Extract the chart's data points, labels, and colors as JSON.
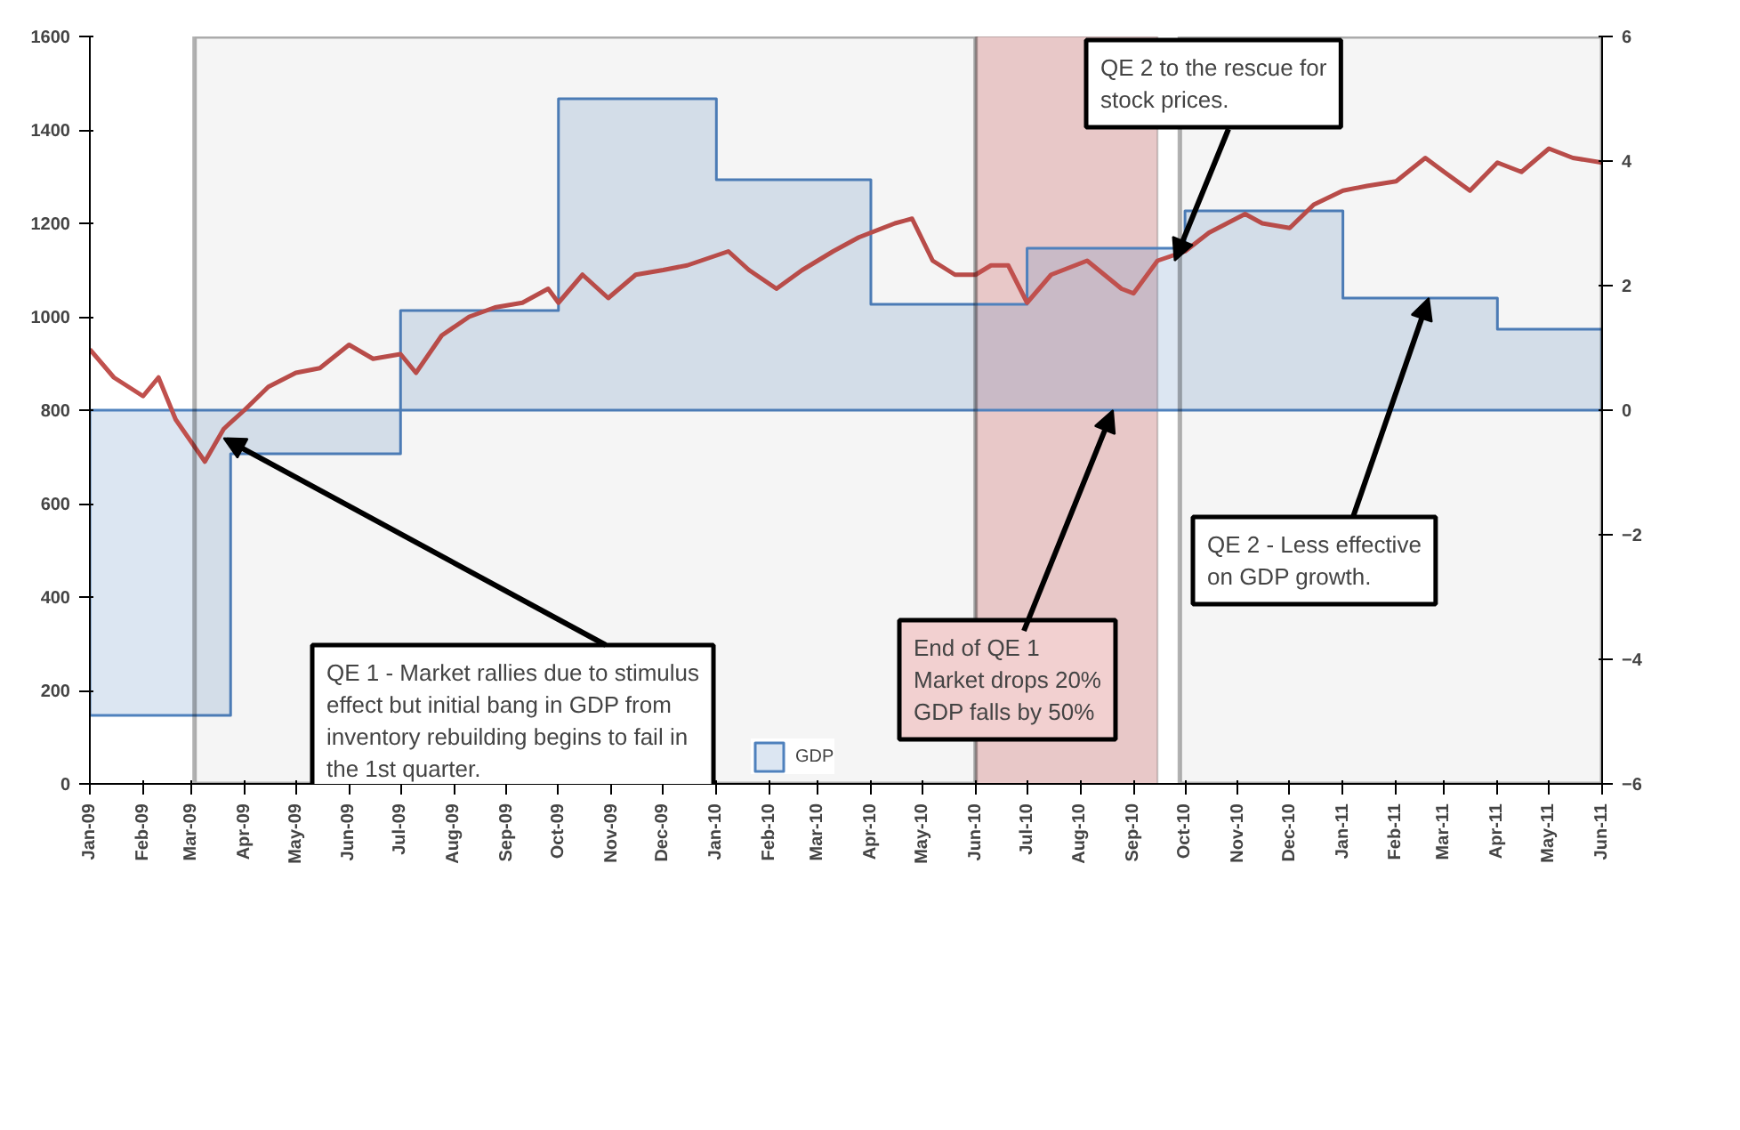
{
  "chart_data": {
    "type": "line",
    "xlim": [
      "2009-01-01",
      "2011-06-01"
    ],
    "xticks": [
      {
        "value": "2009-01",
        "label": "Jan-09"
      },
      {
        "value": "2009-02",
        "label": "Feb-09"
      },
      {
        "value": "2009-03",
        "label": "Mar-09"
      },
      {
        "value": "2009-04",
        "label": "Apr-09"
      },
      {
        "value": "2009-05",
        "label": "May-09"
      },
      {
        "value": "2009-06",
        "label": "Jun-09"
      },
      {
        "value": "2009-07",
        "label": "Jul-09"
      },
      {
        "value": "2009-08",
        "label": "Aug-09"
      },
      {
        "value": "2009-09",
        "label": "Sep-09"
      },
      {
        "value": "2009-10",
        "label": "Oct-09"
      },
      {
        "value": "2009-11",
        "label": "Nov-09"
      },
      {
        "value": "2009-12",
        "label": "Dec-09"
      },
      {
        "value": "2010-01",
        "label": "Jan-10"
      },
      {
        "value": "2010-02",
        "label": "Feb-10"
      },
      {
        "value": "2010-03",
        "label": "Mar-10"
      },
      {
        "value": "2010-04",
        "label": "Apr-10"
      },
      {
        "value": "2010-05",
        "label": "May-10"
      },
      {
        "value": "2010-06",
        "label": "Jun-10"
      },
      {
        "value": "2010-07",
        "label": "Jul-10"
      },
      {
        "value": "2010-08",
        "label": "Aug-10"
      },
      {
        "value": "2010-09",
        "label": "Sep-10"
      },
      {
        "value": "2010-10",
        "label": "Oct-10"
      },
      {
        "value": "2010-11",
        "label": "Nov-10"
      },
      {
        "value": "2010-12",
        "label": "Dec-10"
      },
      {
        "value": "2011-01",
        "label": "Jan-11"
      },
      {
        "value": "2011-02",
        "label": "Feb-11"
      },
      {
        "value": "2011-03",
        "label": "Mar-11"
      },
      {
        "value": "2011-04",
        "label": "Apr-11"
      },
      {
        "value": "2011-05",
        "label": "May-11"
      },
      {
        "value": "2011-06",
        "label": "Jun-11"
      }
    ],
    "ylim": [
      0,
      1600
    ],
    "yticks": [
      0,
      200,
      400,
      600,
      800,
      1000,
      1200,
      1400,
      1600
    ],
    "y2lim": [
      -6,
      6
    ],
    "y2ticks": [
      -6,
      -4,
      -2,
      0,
      2,
      4,
      6
    ],
    "grid": false,
    "legend": "bottom",
    "series": [
      {
        "name": "GDP",
        "type": "area",
        "axis": "y2",
        "color": "#4f81bd",
        "x": [
          "2009-01-01",
          "2009-03-24",
          "2009-03-24",
          "2009-07-01",
          "2009-07-01",
          "2009-10-01",
          "2009-10-01",
          "2010-01-01",
          "2010-01-01",
          "2010-04-01",
          "2010-04-01",
          "2010-07-01",
          "2010-07-01",
          "2010-10-01",
          "2010-10-01",
          "2011-01-01",
          "2011-01-01",
          "2011-04-01",
          "2011-04-01",
          "2011-06-01"
        ],
        "values": [
          -4.9,
          -4.9,
          -0.7,
          -0.7,
          1.6,
          1.6,
          5.0,
          5.0,
          3.7,
          3.7,
          1.7,
          1.7,
          2.6,
          2.6,
          3.2,
          3.2,
          1.8,
          1.8,
          1.3,
          1.3
        ]
      },
      {
        "color": "#c0504d",
        "x": [
          "2009-01-01",
          "2009-01-15",
          "2009-02-01",
          "2009-02-10",
          "2009-02-20",
          "2009-03-09",
          "2009-03-20",
          "2009-04-01",
          "2009-04-15",
          "2009-05-01",
          "2009-05-15",
          "2009-06-01",
          "2009-06-15",
          "2009-07-01",
          "2009-07-10",
          "2009-07-25",
          "2009-08-10",
          "2009-08-25",
          "2009-09-10",
          "2009-09-25",
          "2009-10-01",
          "2009-10-15",
          "2009-10-30",
          "2009-11-15",
          "2009-12-01",
          "2009-12-15",
          "2010-01-08",
          "2010-01-20",
          "2010-02-05",
          "2010-02-20",
          "2010-03-10",
          "2010-03-25",
          "2010-04-15",
          "2010-04-25",
          "2010-05-07",
          "2010-05-20",
          "2010-06-01",
          "2010-06-10",
          "2010-06-20",
          "2010-07-01",
          "2010-07-15",
          "2010-08-05",
          "2010-08-25",
          "2010-09-01",
          "2010-09-15",
          "2010-10-01",
          "2010-10-15",
          "2010-11-05",
          "2010-11-15",
          "2010-12-01",
          "2010-12-15",
          "2011-01-01",
          "2011-01-15",
          "2011-02-01",
          "2011-02-18",
          "2011-03-01",
          "2011-03-16",
          "2011-04-01",
          "2011-04-15",
          "2011-05-01",
          "2011-05-15",
          "2011-06-01"
        ],
        "values": [
          930,
          870,
          830,
          870,
          780,
          690,
          760,
          800,
          850,
          880,
          890,
          940,
          910,
          920,
          880,
          960,
          1000,
          1020,
          1030,
          1060,
          1030,
          1090,
          1040,
          1090,
          1100,
          1110,
          1140,
          1100,
          1060,
          1100,
          1140,
          1170,
          1200,
          1210,
          1120,
          1090,
          1090,
          1110,
          1110,
          1030,
          1090,
          1120,
          1060,
          1050,
          1120,
          1140,
          1180,
          1220,
          1200,
          1190,
          1240,
          1270,
          1280,
          1290,
          1340,
          1310,
          1270,
          1330,
          1310,
          1360,
          1340,
          1330
        ]
      }
    ],
    "bands": [
      {
        "axis": "x",
        "from": "2009-03-03",
        "to": "2010-06-01",
        "color": "#000000"
      },
      {
        "axis": "x",
        "from": "2010-06-01",
        "to": "2010-09-15",
        "color": "#d9a3a3"
      },
      {
        "axis": "x",
        "from": "2010-09-28",
        "to": "2011-06-01",
        "color": "#000000"
      }
    ],
    "annotations": [
      {
        "text": "QE 1 - Market rallies due to stimulus effect but initial bang in GDP from inventory rebuilding begins to fail in the 1st quarter.",
        "x": "2009-03-20",
        "y": 740
      },
      {
        "text": "End of QE 1\nMarket drops 20%\nGDP falls by 50%",
        "x": "2010-08-20",
        "y": 800
      },
      {
        "text": "QE 2 to the rescue for stock prices.",
        "x": "2010-09-25",
        "y": 1120
      },
      {
        "text": "QE 2 - Less effective on GDP growth.",
        "x": "2011-02-20",
        "y": 1040
      }
    ]
  }
}
